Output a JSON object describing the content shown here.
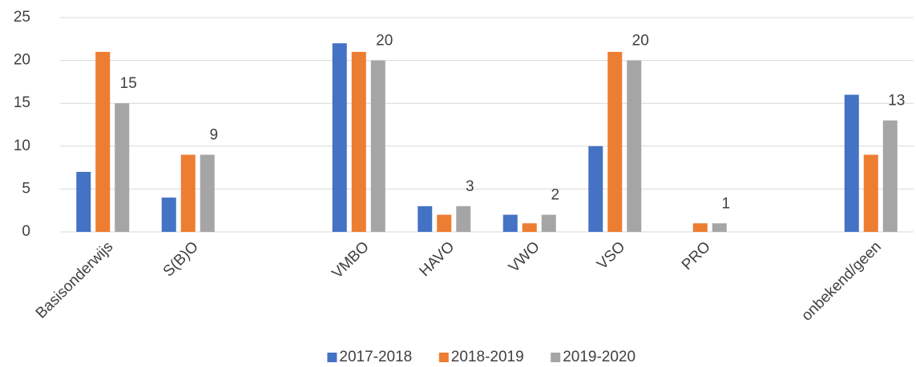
{
  "chart_data": {
    "type": "bar",
    "categories": [
      "Basisonderwijs",
      "S(B)O",
      null,
      "VMBO",
      "HAVO",
      "VWO",
      "VSO",
      "PRO",
      null,
      "onbekend/geen"
    ],
    "series": [
      {
        "name": "2017-2018",
        "color": "#4472c4",
        "values": [
          7,
          4,
          null,
          22,
          3,
          2,
          10,
          0,
          null,
          16
        ]
      },
      {
        "name": "2018-2019",
        "color": "#ed7d31",
        "values": [
          21,
          9,
          null,
          21,
          2,
          1,
          21,
          1,
          null,
          9
        ]
      },
      {
        "name": "2019-2020",
        "color": "#a5a5a5",
        "values": [
          15,
          9,
          null,
          20,
          3,
          2,
          20,
          1,
          null,
          13
        ],
        "data_labels": true
      }
    ],
    "ylim": [
      0,
      25
    ],
    "yticks": [
      0,
      5,
      10,
      15,
      20,
      25
    ],
    "grid": true,
    "legend": "bottom"
  }
}
